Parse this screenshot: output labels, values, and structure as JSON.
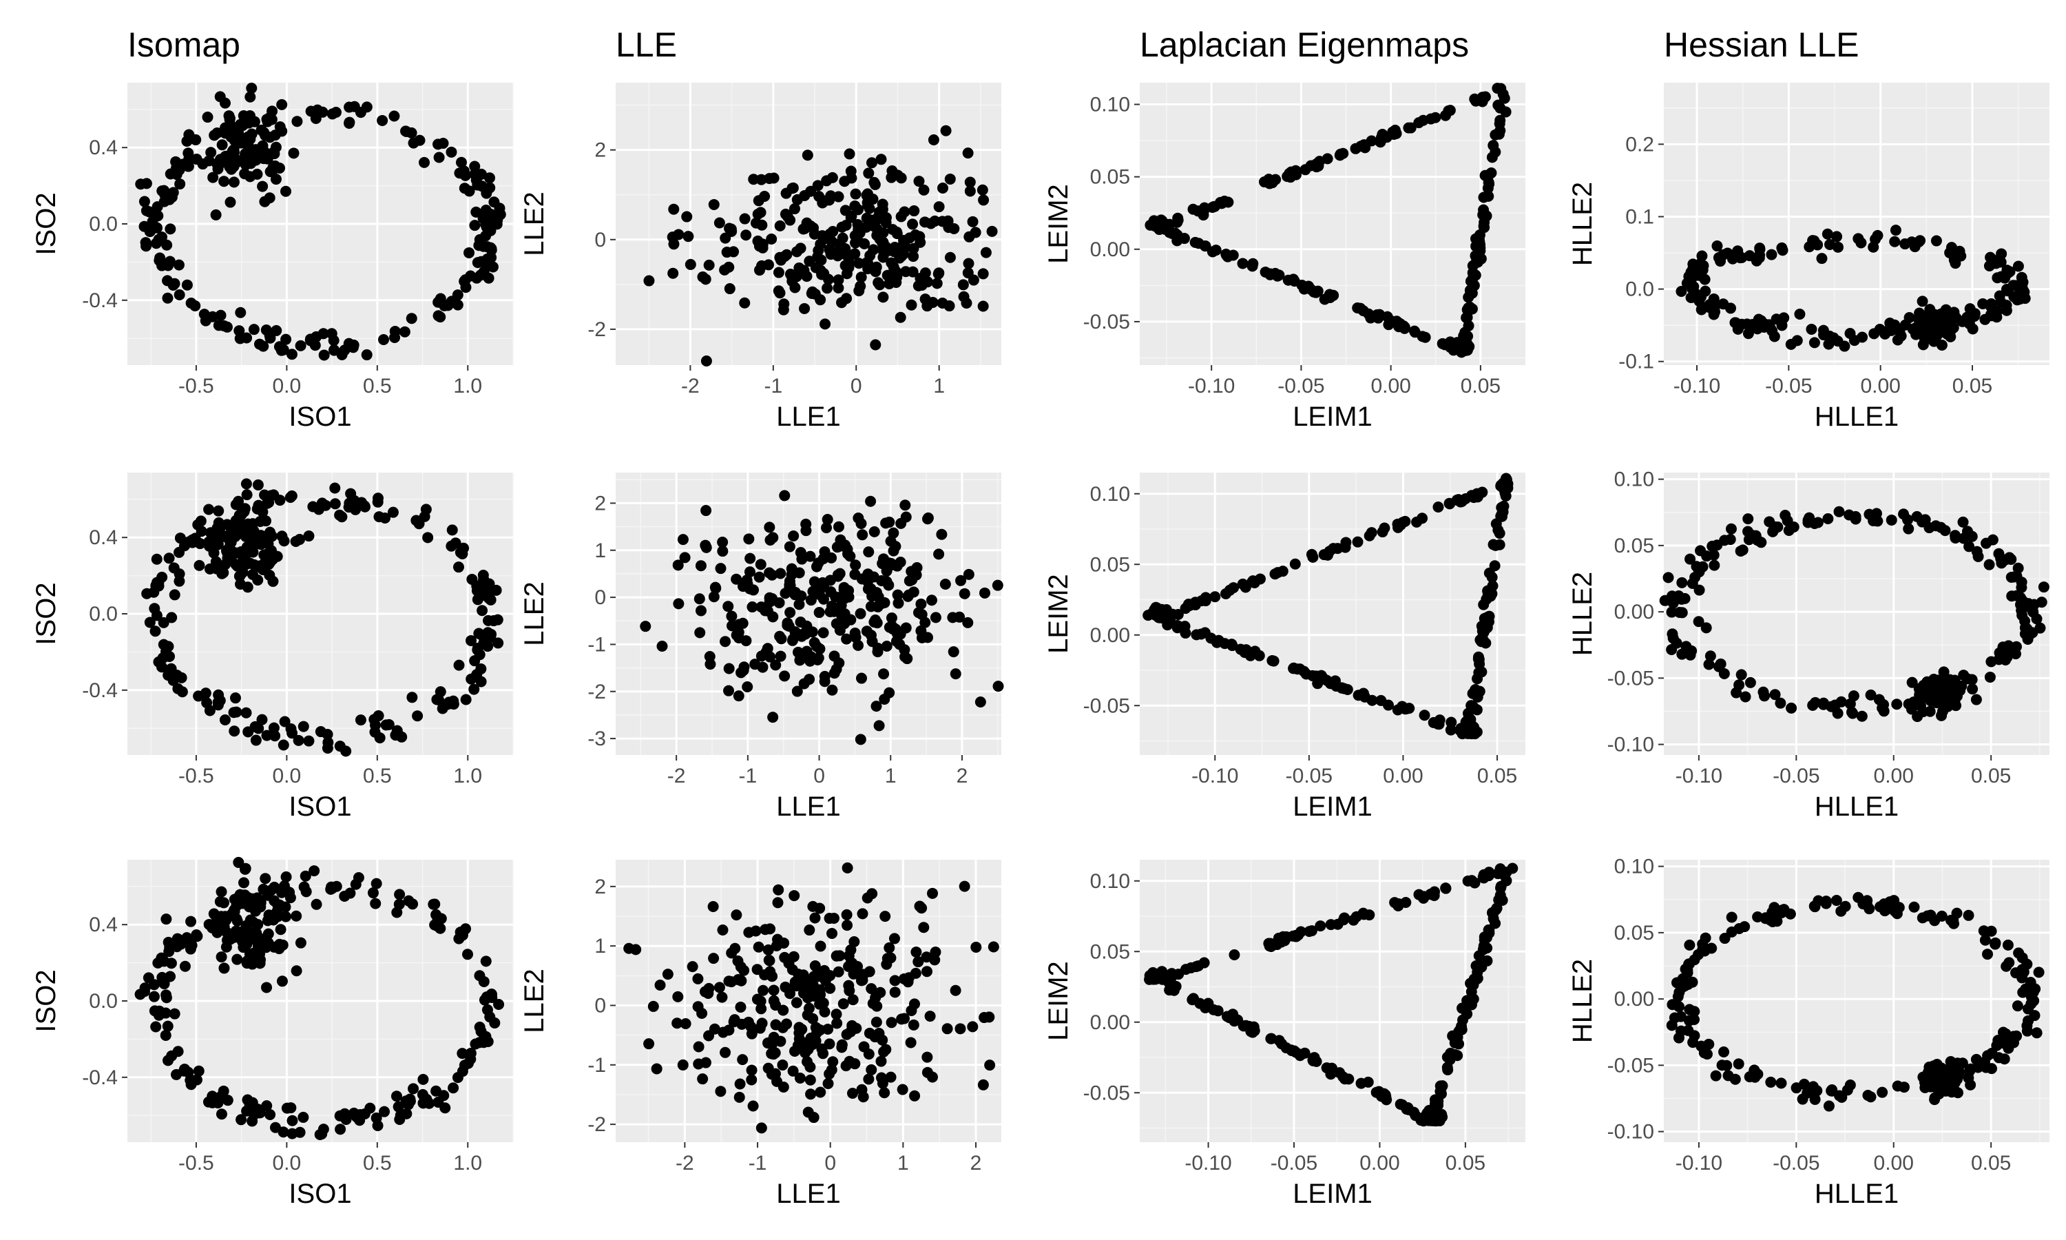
{
  "colors": {
    "panel_background": "#ebebeb",
    "grid_major": "#ffffff",
    "grid_minor": "#f5f5f5",
    "point": "#000000",
    "tick_text": "#4d4d4d"
  },
  "column_titles": [
    "Isomap",
    "LLE",
    "Laplacian Eigenmaps",
    "Hessian LLE"
  ],
  "chart_data": [
    {
      "type": "scatter",
      "method": "Isomap",
      "row": 1,
      "xlabel": "ISO1",
      "ylabel": "ISO2",
      "xlim": [
        -0.88,
        1.25
      ],
      "ylim": [
        -0.74,
        0.74
      ],
      "xticks": [
        -0.5,
        0.0,
        0.5,
        1.0
      ],
      "yticks": [
        -0.4,
        0.0,
        0.4
      ],
      "xtick_labels": [
        "-0.5",
        "0.0",
        "0.5",
        "1.0"
      ],
      "ytick_labels": [
        "-0.4",
        "0.0",
        "0.4"
      ],
      "shape": "ring",
      "shape_params": {
        "cx": 0.2,
        "cy": -0.02,
        "rx": 0.92,
        "ry": 0.62,
        "blob_x": -0.22,
        "blob_y": 0.38,
        "n": 300
      }
    },
    {
      "type": "scatter",
      "method": "LLE",
      "row": 1,
      "xlabel": "LLE1",
      "ylabel": "LLE2",
      "xlim": [
        -2.9,
        1.75
      ],
      "ylim": [
        -2.8,
        3.5
      ],
      "xticks": [
        -2,
        -1,
        0,
        1
      ],
      "yticks": [
        -2,
        0,
        2
      ],
      "xtick_labels": [
        "-2",
        "-1",
        "0",
        "1"
      ],
      "ytick_labels": [
        "-2",
        "0",
        "2"
      ],
      "shape": "cloud",
      "shape_params": {
        "cx": -0.1,
        "cy": 0.0,
        "sx": 0.95,
        "sy": 0.9,
        "n": 300
      }
    },
    {
      "type": "scatter",
      "method": "Laplacian Eigenmaps",
      "row": 1,
      "xlabel": "LEIM1",
      "ylabel": "LEIM2",
      "xlim": [
        -0.14,
        0.075
      ],
      "ylim": [
        -0.08,
        0.115
      ],
      "xticks": [
        -0.1,
        -0.05,
        0.0,
        0.05
      ],
      "yticks": [
        -0.05,
        0.0,
        0.05,
        0.1
      ],
      "xtick_labels": [
        "-0.10",
        "-0.05",
        "0.00",
        "0.05"
      ],
      "ytick_labels": [
        "-0.05",
        "0.00",
        "0.05",
        "0.10"
      ],
      "shape": "triangle",
      "shape_params": {
        "ax": -0.13,
        "ay": 0.015,
        "bx": 0.063,
        "by": 0.11,
        "cx": 0.04,
        "cy": -0.07,
        "n": 300
      }
    },
    {
      "type": "scatter",
      "method": "Hessian LLE",
      "row": 1,
      "xlabel": "HLLE1",
      "ylabel": "HLLE2",
      "xlim": [
        -0.118,
        0.092
      ],
      "ylim": [
        -0.105,
        0.285
      ],
      "xticks": [
        -0.1,
        -0.05,
        0.0,
        0.05
      ],
      "yticks": [
        -0.1,
        0.0,
        0.1,
        0.2
      ],
      "xtick_labels": [
        "-0.10",
        "-0.05",
        "0.00",
        "0.05"
      ],
      "ytick_labels": [
        "-0.1",
        "0.0",
        "0.1",
        "0.2"
      ],
      "shape": "loop",
      "shape_params": {
        "cx": -0.015,
        "cy": 0.0,
        "rx": 0.09,
        "ry": 0.07,
        "blob_x": 0.03,
        "blob_y": -0.05,
        "n": 300
      }
    },
    {
      "type": "scatter",
      "method": "Isomap",
      "row": 2,
      "xlabel": "ISO1",
      "ylabel": "ISO2",
      "xlim": [
        -0.88,
        1.25
      ],
      "ylim": [
        -0.74,
        0.74
      ],
      "xticks": [
        -0.5,
        0.0,
        0.5,
        1.0
      ],
      "yticks": [
        -0.4,
        0.0,
        0.4
      ],
      "xtick_labels": [
        "-0.5",
        "0.0",
        "0.5",
        "1.0"
      ],
      "ytick_labels": [
        "-0.4",
        "0.0",
        "0.4"
      ],
      "shape": "ring",
      "shape_params": {
        "cx": 0.2,
        "cy": -0.02,
        "rx": 0.92,
        "ry": 0.62,
        "blob_x": -0.22,
        "blob_y": 0.36,
        "n": 300
      }
    },
    {
      "type": "scatter",
      "method": "LLE",
      "row": 2,
      "xlabel": "LLE1",
      "ylabel": "LLE2",
      "xlim": [
        -2.85,
        2.55
      ],
      "ylim": [
        -3.35,
        2.65
      ],
      "xticks": [
        -2,
        -1,
        0,
        1,
        2
      ],
      "yticks": [
        -3,
        -2,
        -1,
        0,
        1,
        2
      ],
      "xtick_labels": [
        "-2",
        "-1",
        "0",
        "1",
        "2"
      ],
      "ytick_labels": [
        "-3",
        "-2",
        "-1",
        "0",
        "1",
        "2"
      ],
      "shape": "cloud",
      "shape_params": {
        "cx": 0.0,
        "cy": 0.0,
        "sx": 1.0,
        "sy": 1.0,
        "n": 300
      }
    },
    {
      "type": "scatter",
      "method": "Laplacian Eigenmaps",
      "row": 2,
      "xlabel": "LEIM1",
      "ylabel": "LEIM2",
      "xlim": [
        -0.14,
        0.065
      ],
      "ylim": [
        -0.085,
        0.115
      ],
      "xticks": [
        -0.1,
        -0.05,
        0.0,
        0.05
      ],
      "yticks": [
        -0.05,
        0.0,
        0.05,
        0.1
      ],
      "xtick_labels": [
        "-0.10",
        "-0.05",
        "0.00",
        "0.05"
      ],
      "ytick_labels": [
        "-0.05",
        "0.00",
        "0.05",
        "0.10"
      ],
      "shape": "triangle",
      "shape_params": {
        "ax": -0.13,
        "ay": 0.012,
        "bx": 0.055,
        "by": 0.108,
        "cx": 0.035,
        "cy": -0.07,
        "n": 300
      }
    },
    {
      "type": "scatter",
      "method": "Hessian LLE",
      "row": 2,
      "xlabel": "HLLE1",
      "ylabel": "HLLE2",
      "xlim": [
        -0.118,
        0.08
      ],
      "ylim": [
        -0.108,
        0.105
      ],
      "xticks": [
        -0.1,
        -0.05,
        0.0,
        0.05
      ],
      "yticks": [
        -0.1,
        -0.05,
        0.0,
        0.05,
        0.1
      ],
      "xtick_labels": [
        "-0.10",
        "-0.05",
        "0.00",
        "0.05"
      ],
      "ytick_labels": [
        "-0.10",
        "-0.05",
        "0.00",
        "0.05",
        "0.10"
      ],
      "shape": "loop",
      "shape_params": {
        "cx": -0.02,
        "cy": 0.0,
        "rx": 0.09,
        "ry": 0.08,
        "blob_x": 0.025,
        "blob_y": -0.06,
        "n": 300
      }
    },
    {
      "type": "scatter",
      "method": "Isomap",
      "row": 3,
      "xlabel": "ISO1",
      "ylabel": "ISO2",
      "xlim": [
        -0.88,
        1.25
      ],
      "ylim": [
        -0.74,
        0.74
      ],
      "xticks": [
        -0.5,
        0.0,
        0.5,
        1.0
      ],
      "yticks": [
        -0.4,
        0.0,
        0.4
      ],
      "xtick_labels": [
        "-0.5",
        "0.0",
        "0.5",
        "1.0"
      ],
      "ytick_labels": [
        "-0.4",
        "0.0",
        "0.4"
      ],
      "shape": "ring",
      "shape_params": {
        "cx": 0.2,
        "cy": -0.02,
        "rx": 0.92,
        "ry": 0.62,
        "blob_x": -0.22,
        "blob_y": 0.38,
        "n": 300
      }
    },
    {
      "type": "scatter",
      "method": "LLE",
      "row": 3,
      "xlabel": "LLE1",
      "ylabel": "LLE2",
      "xlim": [
        -2.95,
        2.35
      ],
      "ylim": [
        -2.3,
        2.45
      ],
      "xticks": [
        -2,
        -1,
        0,
        1,
        2
      ],
      "yticks": [
        -2,
        -1,
        0,
        1,
        2
      ],
      "xtick_labels": [
        "-2",
        "-1",
        "0",
        "1",
        "2"
      ],
      "ytick_labels": [
        "-2",
        "-1",
        "0",
        "1",
        "2"
      ],
      "shape": "cloud",
      "shape_params": {
        "cx": -0.2,
        "cy": -0.1,
        "sx": 1.0,
        "sy": 0.9,
        "n": 300
      }
    },
    {
      "type": "scatter",
      "method": "Laplacian Eigenmaps",
      "row": 3,
      "xlabel": "LEIM1",
      "ylabel": "LEIM2",
      "xlim": [
        -0.14,
        0.085
      ],
      "ylim": [
        -0.085,
        0.115
      ],
      "xticks": [
        -0.1,
        -0.05,
        0.0,
        0.05
      ],
      "yticks": [
        -0.05,
        0.0,
        0.05,
        0.1
      ],
      "xtick_labels": [
        "-0.10",
        "-0.05",
        "0.00",
        "0.05"
      ],
      "ytick_labels": [
        "-0.05",
        "0.00",
        "0.05",
        "0.10"
      ],
      "shape": "triangle",
      "shape_params": {
        "ax": -0.13,
        "ay": 0.03,
        "bx": 0.075,
        "by": 0.108,
        "cx": 0.03,
        "cy": -0.07,
        "n": 300
      }
    },
    {
      "type": "scatter",
      "method": "Hessian LLE",
      "row": 3,
      "xlabel": "HLLE1",
      "ylabel": "HLLE2",
      "xlim": [
        -0.118,
        0.08
      ],
      "ylim": [
        -0.108,
        0.105
      ],
      "xticks": [
        -0.1,
        -0.05,
        0.0,
        0.05
      ],
      "yticks": [
        -0.1,
        -0.05,
        0.0,
        0.05,
        0.1
      ],
      "xtick_labels": [
        "-0.10",
        "-0.05",
        "0.00",
        "0.05"
      ],
      "ytick_labels": [
        "-0.10",
        "-0.05",
        "0.00",
        "0.05",
        "0.10"
      ],
      "shape": "loop",
      "shape_params": {
        "cx": -0.02,
        "cy": 0.0,
        "rx": 0.09,
        "ry": 0.08,
        "blob_x": 0.025,
        "blob_y": -0.06,
        "n": 300
      }
    }
  ]
}
